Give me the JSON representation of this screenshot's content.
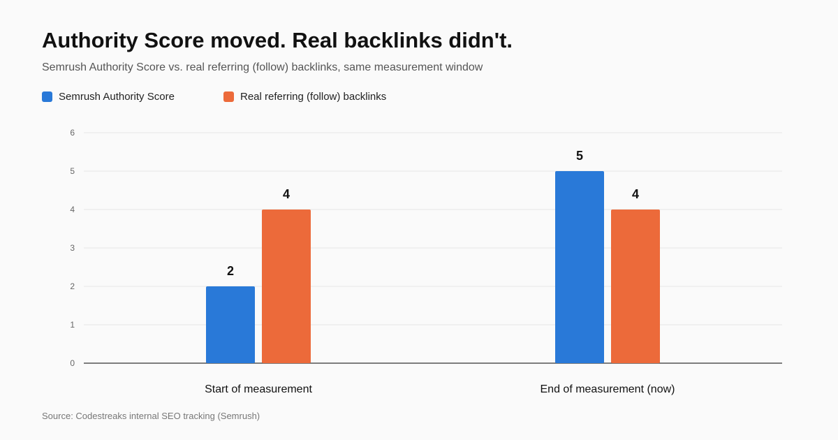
{
  "title": "Authority Score moved. Real backlinks didn't.",
  "subtitle": "Semrush Authority Score vs. real referring (follow) backlinks, same measurement window",
  "source": "Source: Codestreaks internal SEO tracking (Semrush)",
  "colors": {
    "series_1": "#2979d8",
    "series_2": "#ec6a3a",
    "grid": "#e6e6e6",
    "axis": "#333333",
    "tick_text": "#666666"
  },
  "chart_data": {
    "type": "bar",
    "title": "Authority Score moved. Real backlinks didn't.",
    "subtitle": "Semrush Authority Score vs. real referring (follow) backlinks, same measurement window",
    "categories": [
      "Start of measurement",
      "End of measurement (now)"
    ],
    "series": [
      {
        "name": "Semrush Authority Score",
        "values": [
          2,
          5
        ]
      },
      {
        "name": "Real referring (follow) backlinks",
        "values": [
          4,
          4
        ]
      }
    ],
    "ylim": [
      0,
      6
    ],
    "yticks": [
      "0",
      "1",
      "2",
      "3",
      "4",
      "5",
      "6"
    ],
    "xlabel": "",
    "ylabel": "",
    "grid": true,
    "legend": "top-left",
    "data_labels": true
  }
}
